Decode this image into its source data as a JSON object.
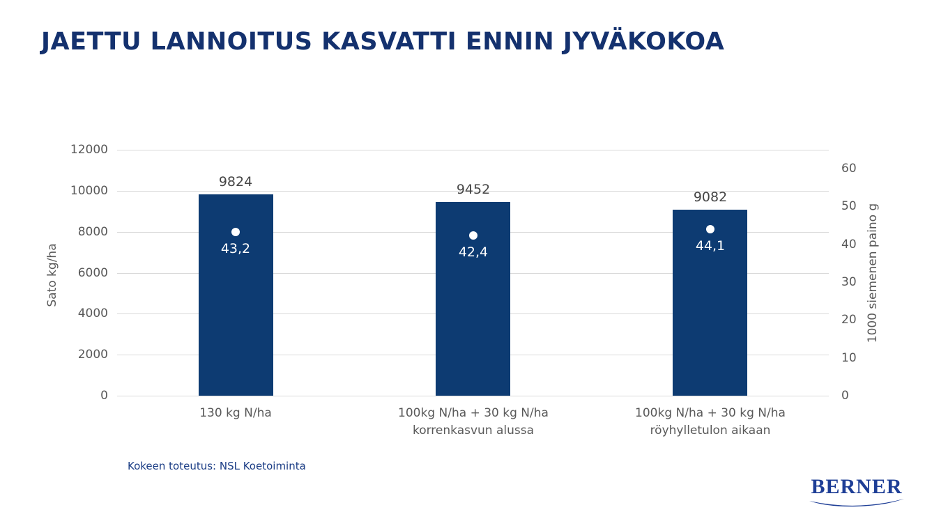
{
  "title": "JAETTU LANNOITUS KASVATTI ENNIN JYVÄKOKOA",
  "footer": "Kokeen toteutus: NSL Koetoiminta",
  "logo": {
    "text": "BERNER"
  },
  "colors": {
    "title": "#14316e",
    "bar": "#0d3b72",
    "dot": "#ffffff",
    "tick_text": "#595959",
    "gridline": "#d9d9d9",
    "value_label": "#454545",
    "dot_label": "#ffffff",
    "footer_text": "#1b3d85",
    "logo_blue": "#1e3e96"
  },
  "chart_data": {
    "type": "bar",
    "title": "JAETTU LANNOITUS KASVATTI ENNIN JYVÄKOKOA",
    "categories": [
      "130 kg N/ha",
      "100kg N/ha + 30 kg N/ha\nkorrenkasvun alussa",
      "100kg N/ha + 30 kg N/ha\nröyhylletulon aikaan"
    ],
    "series": [
      {
        "name": "Sato kg/ha",
        "type": "bar",
        "axis": "left",
        "values": [
          9824,
          9452,
          9082
        ],
        "data_labels": [
          "9824",
          "9452",
          "9082"
        ],
        "color": "#0d3b72"
      },
      {
        "name": "1000 siemenen paino g",
        "type": "point",
        "axis": "right",
        "values": [
          43.2,
          42.4,
          44.1
        ],
        "data_labels": [
          "43,2",
          "42,4",
          "44,1"
        ],
        "color": "#ffffff"
      }
    ],
    "left_axis": {
      "label": "Sato kg/ha",
      "tick_values": [
        0,
        2000,
        4000,
        6000,
        8000,
        10000,
        12000
      ],
      "tick_labels": [
        "0",
        "2000",
        "4000",
        "6000",
        "8000",
        "10000",
        "12000"
      ],
      "range": [
        0,
        12000
      ]
    },
    "right_axis": {
      "label": "1000 siemenen paino g",
      "tick_values": [
        0,
        10,
        20,
        30,
        40,
        50,
        60
      ],
      "tick_labels": [
        "0",
        "10",
        "20",
        "30",
        "40",
        "50",
        "60"
      ],
      "range": [
        0,
        65
      ]
    },
    "grid": true,
    "legend": "none"
  }
}
